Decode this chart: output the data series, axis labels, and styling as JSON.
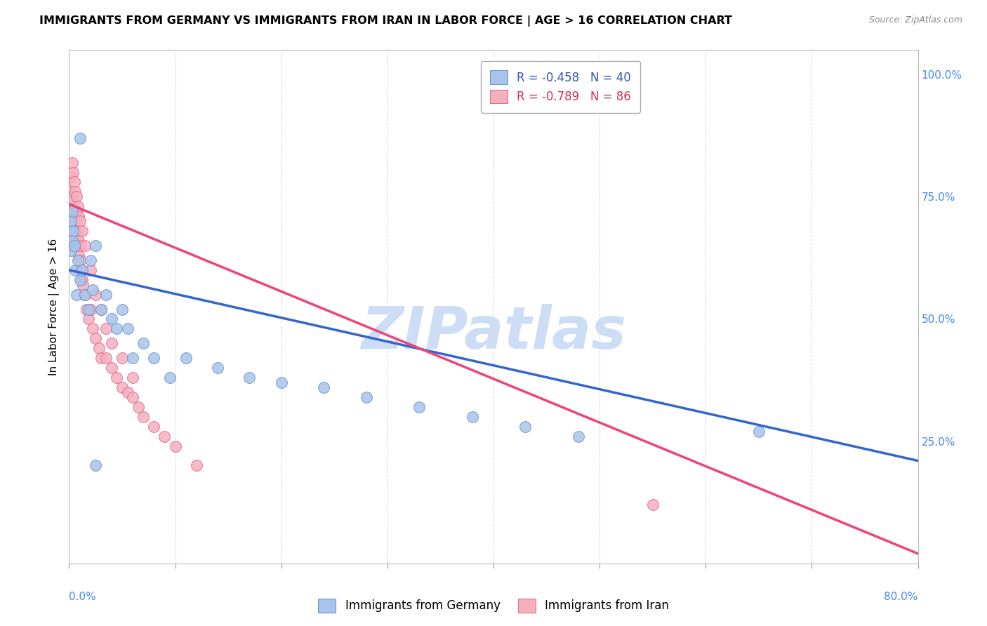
{
  "title": "IMMIGRANTS FROM GERMANY VS IMMIGRANTS FROM IRAN IN LABOR FORCE | AGE > 16 CORRELATION CHART",
  "source": "Source: ZipAtlas.com",
  "ylabel": "In Labor Force | Age > 16",
  "ylabel_right_ticks": [
    0.0,
    0.25,
    0.5,
    0.75,
    1.0
  ],
  "ylabel_right_labels": [
    "",
    "25.0%",
    "50.0%",
    "75.0%",
    "100.0%"
  ],
  "xlim": [
    0.0,
    0.8
  ],
  "ylim": [
    0.0,
    1.05
  ],
  "germany_color": "#a8c4ec",
  "germany_edge_color": "#7099cc",
  "iran_color": "#f5b0c0",
  "iran_edge_color": "#e07090",
  "germany_line_color": "#3366cc",
  "iran_line_color": "#ee4477",
  "germany_R": -0.458,
  "germany_N": 40,
  "iran_R": -0.789,
  "iran_N": 86,
  "watermark": "ZIPatlas",
  "watermark_color": "#ccddf5",
  "germany_line_x0": 0.0,
  "germany_line_y0": 0.6,
  "germany_line_x1": 0.8,
  "germany_line_y1": 0.21,
  "iran_line_x0": 0.0,
  "iran_line_y0": 0.735,
  "iran_line_x1": 0.8,
  "iran_line_y1": 0.02,
  "germany_scatter_x": [
    0.001,
    0.002,
    0.002,
    0.003,
    0.003,
    0.004,
    0.005,
    0.006,
    0.007,
    0.008,
    0.01,
    0.012,
    0.015,
    0.018,
    0.02,
    0.022,
    0.025,
    0.03,
    0.035,
    0.04,
    0.045,
    0.05,
    0.055,
    0.06,
    0.07,
    0.08,
    0.095,
    0.11,
    0.14,
    0.17,
    0.2,
    0.24,
    0.28,
    0.33,
    0.38,
    0.43,
    0.48,
    0.65,
    0.01,
    0.025
  ],
  "germany_scatter_y": [
    0.68,
    0.64,
    0.7,
    0.66,
    0.72,
    0.68,
    0.65,
    0.6,
    0.55,
    0.62,
    0.58,
    0.6,
    0.55,
    0.52,
    0.62,
    0.56,
    0.65,
    0.52,
    0.55,
    0.5,
    0.48,
    0.52,
    0.48,
    0.42,
    0.45,
    0.42,
    0.38,
    0.42,
    0.4,
    0.38,
    0.37,
    0.36,
    0.34,
    0.32,
    0.3,
    0.28,
    0.26,
    0.27,
    0.87,
    0.2
  ],
  "iran_scatter_x": [
    0.001,
    0.001,
    0.001,
    0.001,
    0.001,
    0.001,
    0.001,
    0.001,
    0.002,
    0.002,
    0.002,
    0.002,
    0.002,
    0.002,
    0.002,
    0.003,
    0.003,
    0.003,
    0.003,
    0.003,
    0.003,
    0.004,
    0.004,
    0.004,
    0.004,
    0.004,
    0.005,
    0.005,
    0.005,
    0.005,
    0.006,
    0.006,
    0.006,
    0.007,
    0.007,
    0.007,
    0.008,
    0.008,
    0.009,
    0.009,
    0.01,
    0.01,
    0.011,
    0.012,
    0.013,
    0.014,
    0.015,
    0.016,
    0.018,
    0.02,
    0.022,
    0.025,
    0.028,
    0.03,
    0.035,
    0.04,
    0.045,
    0.05,
    0.055,
    0.06,
    0.065,
    0.07,
    0.08,
    0.09,
    0.1,
    0.12,
    0.002,
    0.003,
    0.004,
    0.005,
    0.006,
    0.007,
    0.008,
    0.009,
    0.01,
    0.012,
    0.015,
    0.02,
    0.025,
    0.03,
    0.035,
    0.04,
    0.05,
    0.06,
    0.55,
    0.001
  ],
  "iran_scatter_y": [
    0.72,
    0.73,
    0.74,
    0.7,
    0.68,
    0.75,
    0.71,
    0.69,
    0.72,
    0.74,
    0.7,
    0.68,
    0.72,
    0.65,
    0.76,
    0.7,
    0.72,
    0.68,
    0.65,
    0.75,
    0.73,
    0.7,
    0.68,
    0.72,
    0.66,
    0.74,
    0.7,
    0.68,
    0.65,
    0.72,
    0.68,
    0.7,
    0.65,
    0.68,
    0.66,
    0.72,
    0.65,
    0.68,
    0.63,
    0.66,
    0.62,
    0.65,
    0.6,
    0.58,
    0.57,
    0.55,
    0.55,
    0.52,
    0.5,
    0.52,
    0.48,
    0.46,
    0.44,
    0.42,
    0.42,
    0.4,
    0.38,
    0.36,
    0.35,
    0.34,
    0.32,
    0.3,
    0.28,
    0.26,
    0.24,
    0.2,
    0.79,
    0.82,
    0.8,
    0.78,
    0.76,
    0.75,
    0.73,
    0.71,
    0.7,
    0.68,
    0.65,
    0.6,
    0.55,
    0.52,
    0.48,
    0.45,
    0.42,
    0.38,
    0.12,
    0.68
  ]
}
